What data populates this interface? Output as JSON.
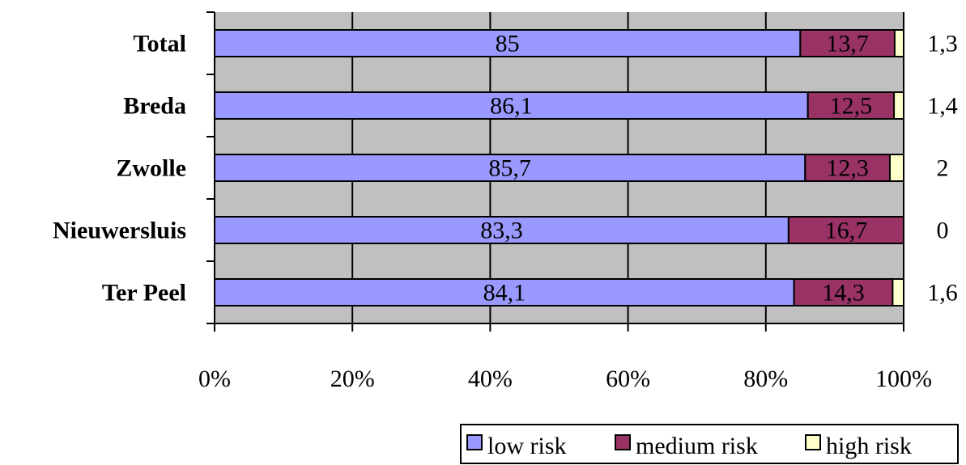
{
  "chart_data": {
    "type": "bar",
    "orientation": "horizontal",
    "stacked": "percent",
    "categories": [
      "Total",
      "Breda",
      "Zwolle",
      "Nieuwersluis",
      "Ter Peel"
    ],
    "series": [
      {
        "name": "low risk",
        "values": [
          85,
          86.1,
          85.7,
          83.3,
          84.1
        ],
        "labels": [
          "85",
          "86,1",
          "85,7",
          "83,3",
          "84,1"
        ],
        "color": "#9999ff"
      },
      {
        "name": "medium risk",
        "values": [
          13.7,
          12.5,
          12.3,
          16.7,
          14.3
        ],
        "labels": [
          "13,7",
          "12,5",
          "12,3",
          "16,7",
          "14,3"
        ],
        "color": "#993366"
      },
      {
        "name": "high risk",
        "values": [
          1.3,
          1.4,
          2,
          0,
          1.6
        ],
        "labels": [
          "1,3",
          "1,4",
          "2",
          "0",
          "1,6"
        ],
        "color": "#ffffcc"
      }
    ],
    "xticks": [
      "0%",
      "20%",
      "40%",
      "60%",
      "80%",
      "100%"
    ],
    "xlim": [
      0,
      100
    ],
    "grid": true,
    "plot_background": "#c0c0c0",
    "legend_position": "bottom-right"
  }
}
